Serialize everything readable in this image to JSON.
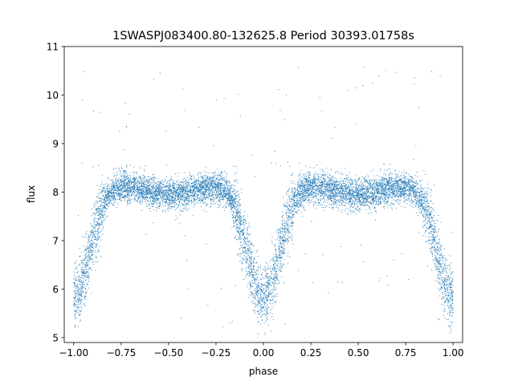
{
  "chart_data": {
    "type": "scatter",
    "title": "1SWASPJ083400.80-132625.8 Period 30393.01758s",
    "xlabel": "phase",
    "ylabel": "flux",
    "xlim": [
      -1.05,
      1.05
    ],
    "ylim": [
      4.9,
      11.0
    ],
    "xticks": [
      -1.0,
      -0.75,
      -0.5,
      -0.25,
      0.0,
      0.25,
      0.5,
      0.75,
      1.0
    ],
    "xtick_labels": [
      "−1.00",
      "−0.75",
      "−0.50",
      "−0.25",
      "0.00",
      "0.25",
      "0.50",
      "0.75",
      "1.00"
    ],
    "yticks": [
      5,
      6,
      7,
      8,
      9,
      10,
      11
    ],
    "ytick_labels": [
      "5",
      "6",
      "7",
      "8",
      "9",
      "10",
      "11"
    ],
    "grid": false,
    "marker_color": "#1f77b4",
    "light_curve": {
      "phase_range": [
        -1.0,
        1.0
      ],
      "out_of_eclipse_flux": 8.15,
      "primary_minima": [
        {
          "phase": -1.0,
          "flux": 5.85
        },
        {
          "phase": 0.0,
          "flux": 5.85
        },
        {
          "phase": 1.0,
          "flux": 5.85
        }
      ],
      "secondary_minima": [
        {
          "phase": -0.5,
          "flux": 7.95
        },
        {
          "phase": 0.5,
          "flux": 7.95
        }
      ],
      "scatter_sigma": 0.16,
      "outlier_range": [
        5.2,
        10.7
      ]
    }
  }
}
